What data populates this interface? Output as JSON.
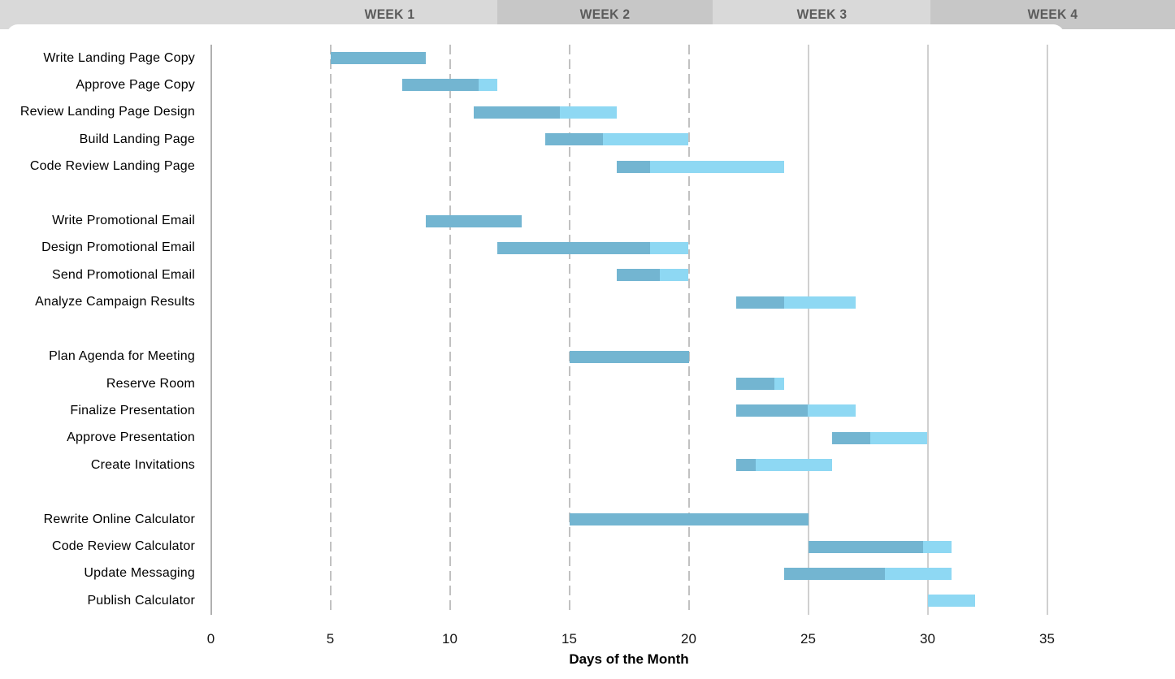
{
  "header": {
    "segments": [
      {
        "label": ""
      },
      {
        "label": "WEEK 1"
      },
      {
        "label": "WEEK 2"
      },
      {
        "label": "WEEK 3"
      },
      {
        "label": "WEEK 4"
      }
    ]
  },
  "colors": {
    "bar_complete": "#73b5d1",
    "bar_remaining": "#8ed8f3",
    "header_band_light": "#d9d9d9",
    "header_band_dark": "#c7c7c7",
    "header_text": "#5b5b5b",
    "gridline_dashed": "#c1c1c1",
    "gridline_solid": "#d0d0d0",
    "axis_line": "#b0b0b0",
    "text": "#000000"
  },
  "chart_data": {
    "type": "bar",
    "subtype": "gantt",
    "orientation": "horizontal",
    "title": "",
    "xlabel": "Days of the Month",
    "xticks": [
      0,
      5,
      10,
      15,
      20,
      25,
      30,
      35
    ],
    "xlim": [
      0,
      40
    ],
    "grid": "vertical; dashed for days 5-20, solid for days 25-35, solid darker axis at day 0",
    "series": [
      {
        "name": "completed-portion",
        "color": "#73b5d1"
      },
      {
        "name": "remaining-portion",
        "color": "#8ed8f3"
      }
    ],
    "tasks": [
      {
        "label": "Write Landing Page Copy",
        "group": 1,
        "start": 5,
        "end": 9,
        "complete_pct": 100
      },
      {
        "label": "Approve Page Copy",
        "group": 1,
        "start": 8,
        "end": 12,
        "complete_pct": 80
      },
      {
        "label": "Review Landing Page Design",
        "group": 1,
        "start": 11,
        "end": 17,
        "complete_pct": 60
      },
      {
        "label": "Build Landing Page",
        "group": 1,
        "start": 14,
        "end": 20,
        "complete_pct": 40
      },
      {
        "label": "Code Review Landing Page",
        "group": 1,
        "start": 17,
        "end": 24,
        "complete_pct": 20
      },
      {
        "label": "Write Promotional Email",
        "group": 2,
        "start": 9,
        "end": 13,
        "complete_pct": 100
      },
      {
        "label": "Design Promotional Email",
        "group": 2,
        "start": 12,
        "end": 20,
        "complete_pct": 80
      },
      {
        "label": "Send Promotional Email",
        "group": 2,
        "start": 17,
        "end": 20,
        "complete_pct": 60
      },
      {
        "label": "Analyze Campaign Results",
        "group": 2,
        "start": 22,
        "end": 27,
        "complete_pct": 40
      },
      {
        "label": "Plan Agenda for Meeting",
        "group": 3,
        "start": 15,
        "end": 20,
        "complete_pct": 100
      },
      {
        "label": "Reserve Room",
        "group": 3,
        "start": 22,
        "end": 24,
        "complete_pct": 80
      },
      {
        "label": "Finalize Presentation",
        "group": 3,
        "start": 22,
        "end": 27,
        "complete_pct": 60
      },
      {
        "label": "Approve Presentation",
        "group": 3,
        "start": 26,
        "end": 30,
        "complete_pct": 40
      },
      {
        "label": "Create Invitations",
        "group": 3,
        "start": 22,
        "end": 26,
        "complete_pct": 20
      },
      {
        "label": "Rewrite Online Calculator",
        "group": 4,
        "start": 15,
        "end": 25,
        "complete_pct": 100
      },
      {
        "label": "Code Review Calculator",
        "group": 4,
        "start": 25,
        "end": 31,
        "complete_pct": 80
      },
      {
        "label": "Update Messaging",
        "group": 4,
        "start": 24,
        "end": 31,
        "complete_pct": 60
      },
      {
        "label": "Publish Calculator",
        "group": 4,
        "start": 30,
        "end": 32,
        "complete_pct": 0
      }
    ]
  }
}
